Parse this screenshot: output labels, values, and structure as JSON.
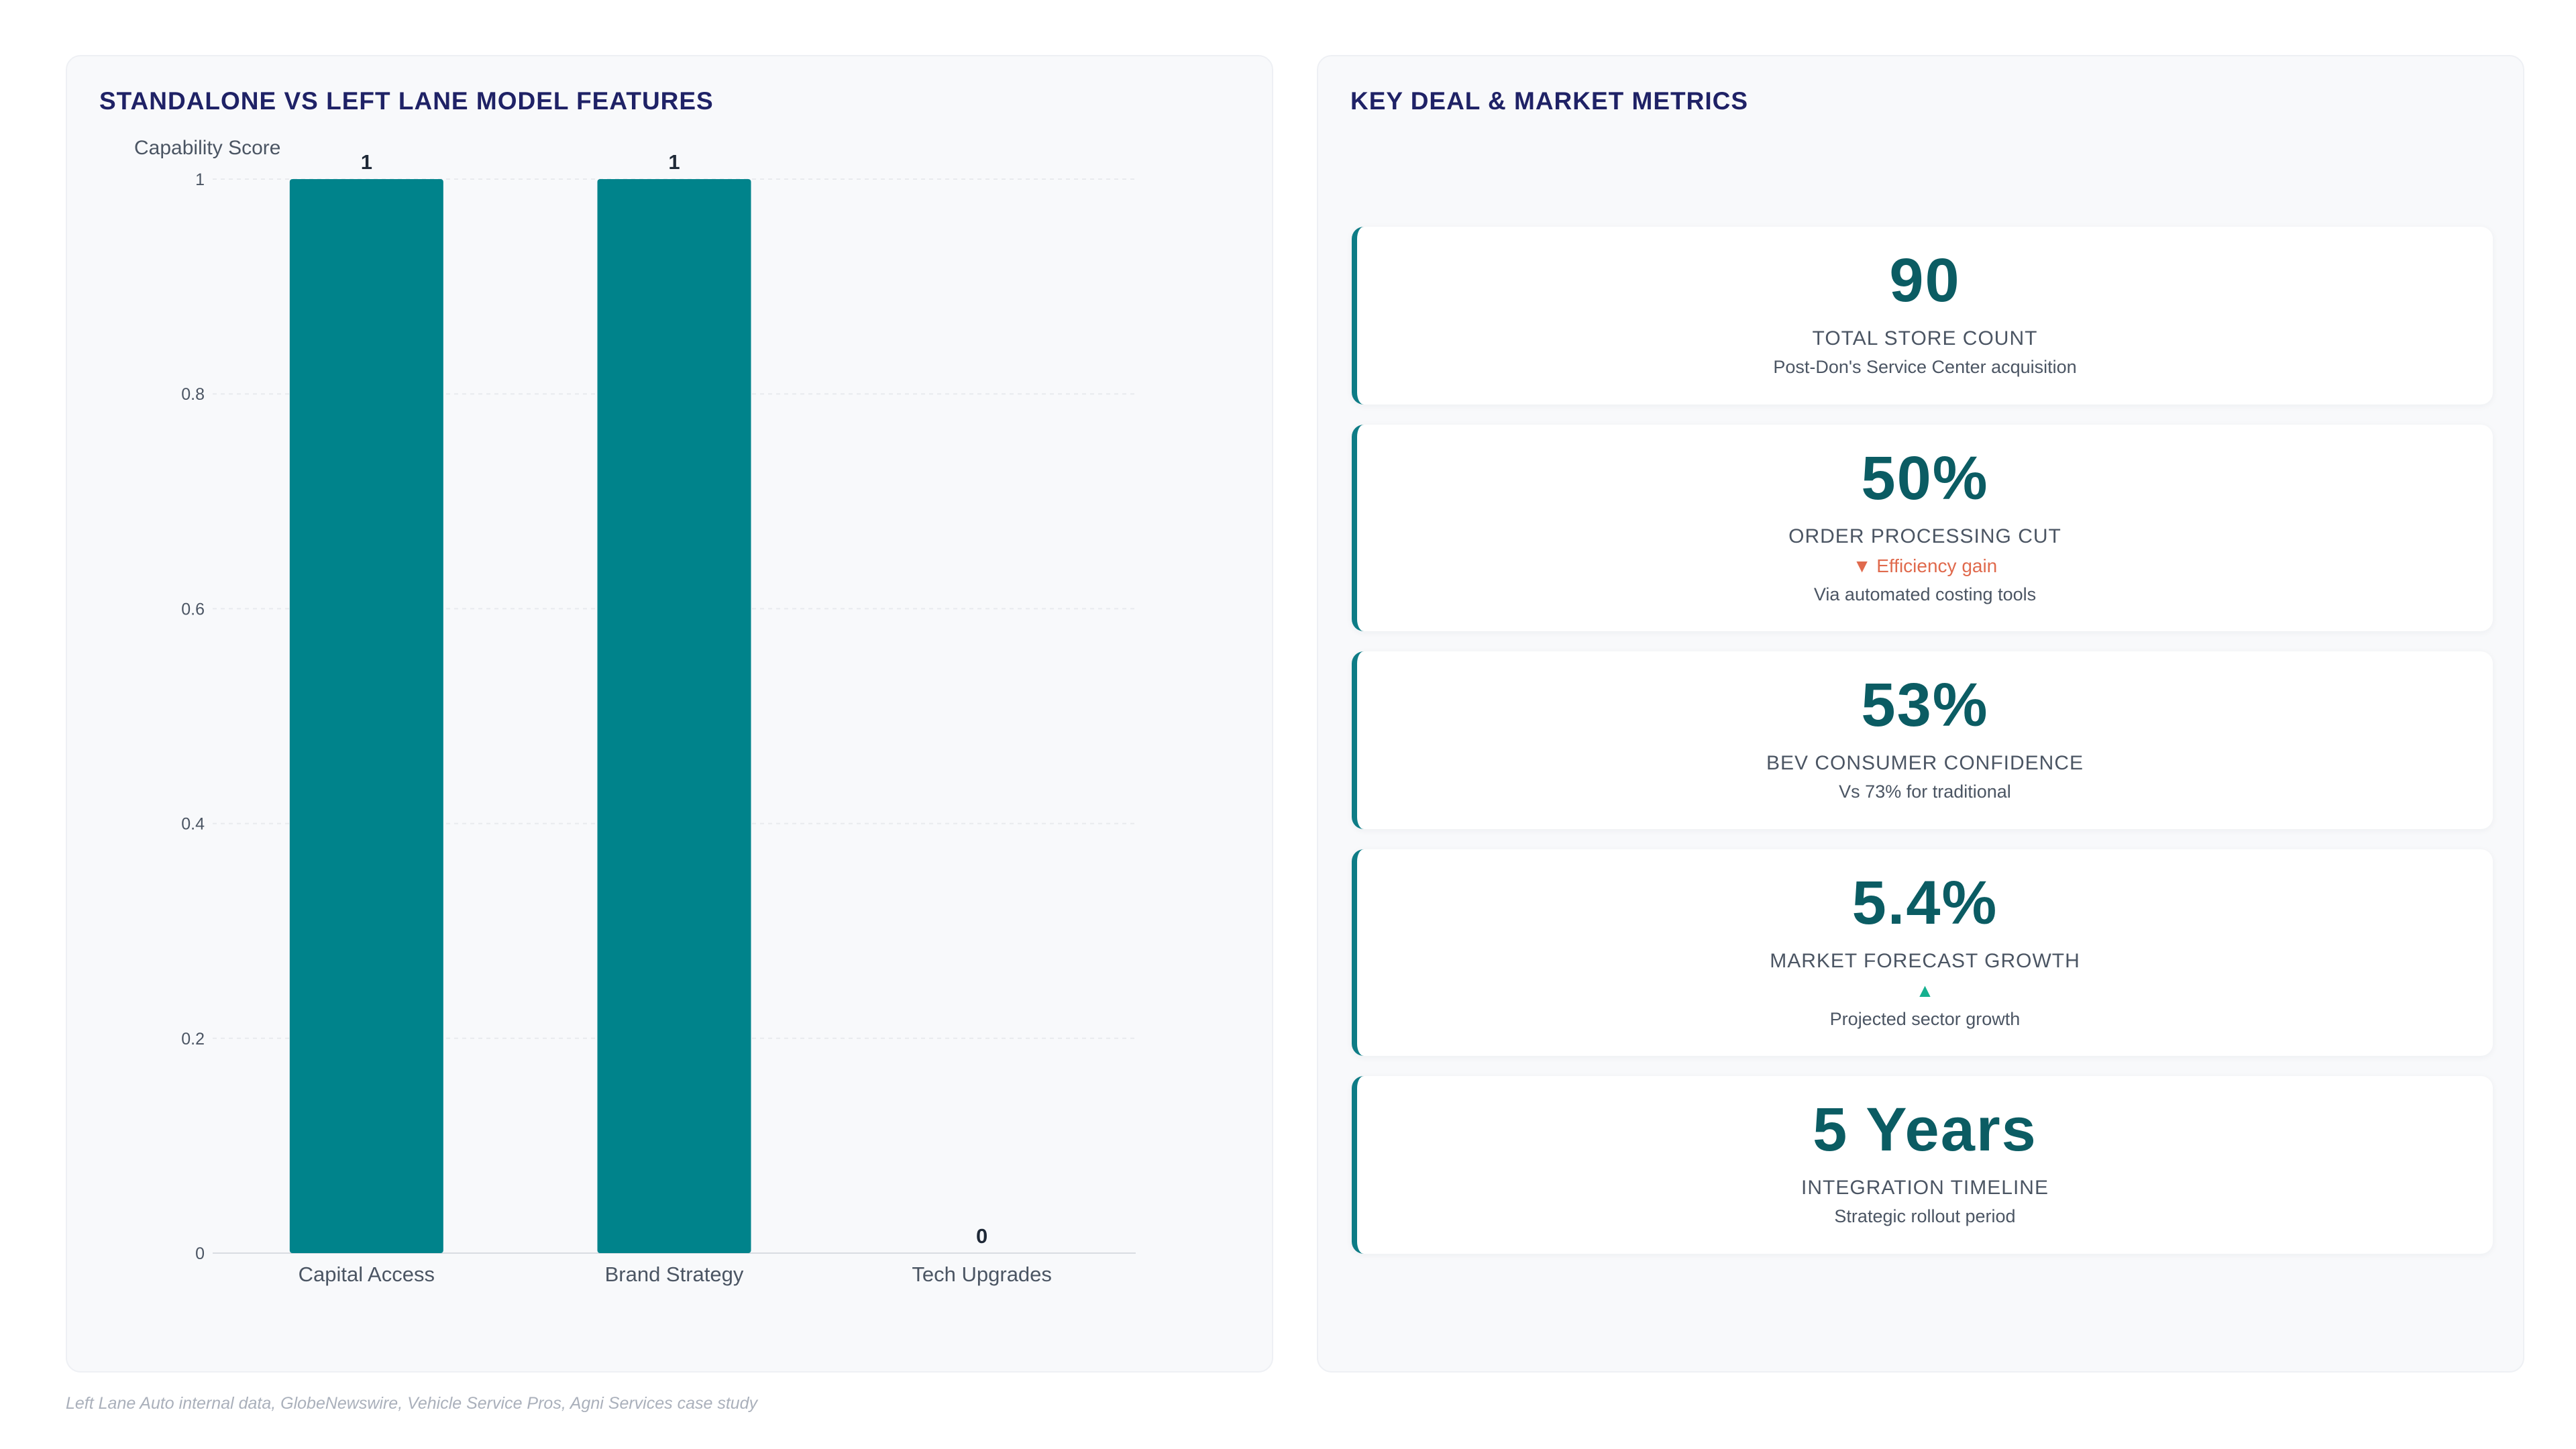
{
  "left_panel": {
    "title": "STANDALONE VS LEFT LANE MODEL FEATURES"
  },
  "right_panel": {
    "title": "KEY DEAL & MARKET METRICS"
  },
  "chart_data": {
    "type": "bar",
    "title": "STANDALONE VS LEFT LANE MODEL FEATURES",
    "ylabel": "Capability Score",
    "xlabel": "",
    "categories": [
      "Capital Access",
      "Brand Strategy",
      "Tech Upgrades"
    ],
    "values": [
      1,
      1,
      0
    ],
    "data_labels": [
      "1",
      "1",
      "0"
    ],
    "ylim": [
      0,
      1
    ],
    "yticks": [
      0,
      0.2,
      0.4,
      0.6,
      0.8,
      1
    ],
    "ytick_labels": [
      "0",
      "0.2",
      "0.4",
      "0.6",
      "0.8",
      "1"
    ],
    "grid": true,
    "legend": "none",
    "bar_color": "#00838b"
  },
  "metrics": [
    {
      "value": "90",
      "label": "TOTAL STORE COUNT",
      "delta": "",
      "delta_dir": "",
      "sub": "Post-Don's Service Center acquisition"
    },
    {
      "value": "50%",
      "label": "ORDER PROCESSING CUT",
      "delta": "▼ Efficiency gain",
      "delta_dir": "down",
      "sub": "Via automated costing tools"
    },
    {
      "value": "53%",
      "label": "BEV CONSUMER CONFIDENCE",
      "delta": "",
      "delta_dir": "",
      "sub": "Vs 73% for traditional"
    },
    {
      "value": "5.4%",
      "label": "MARKET FORECAST GROWTH",
      "delta": "▲",
      "delta_dir": "up",
      "sub": "Projected sector growth"
    },
    {
      "value": "5 Years",
      "label": "INTEGRATION TIMELINE",
      "delta": "",
      "delta_dir": "",
      "sub": "Strategic rollout period"
    }
  ],
  "colors": {
    "accent": "#0e7c86",
    "value_text": "#0b5c63",
    "title_text": "#1f2266",
    "down": "#e06a4d",
    "up": "#15b08f"
  },
  "footnote": "Left Lane Auto internal data, GlobeNewswire, Vehicle Service Pros, Agni Services case study"
}
